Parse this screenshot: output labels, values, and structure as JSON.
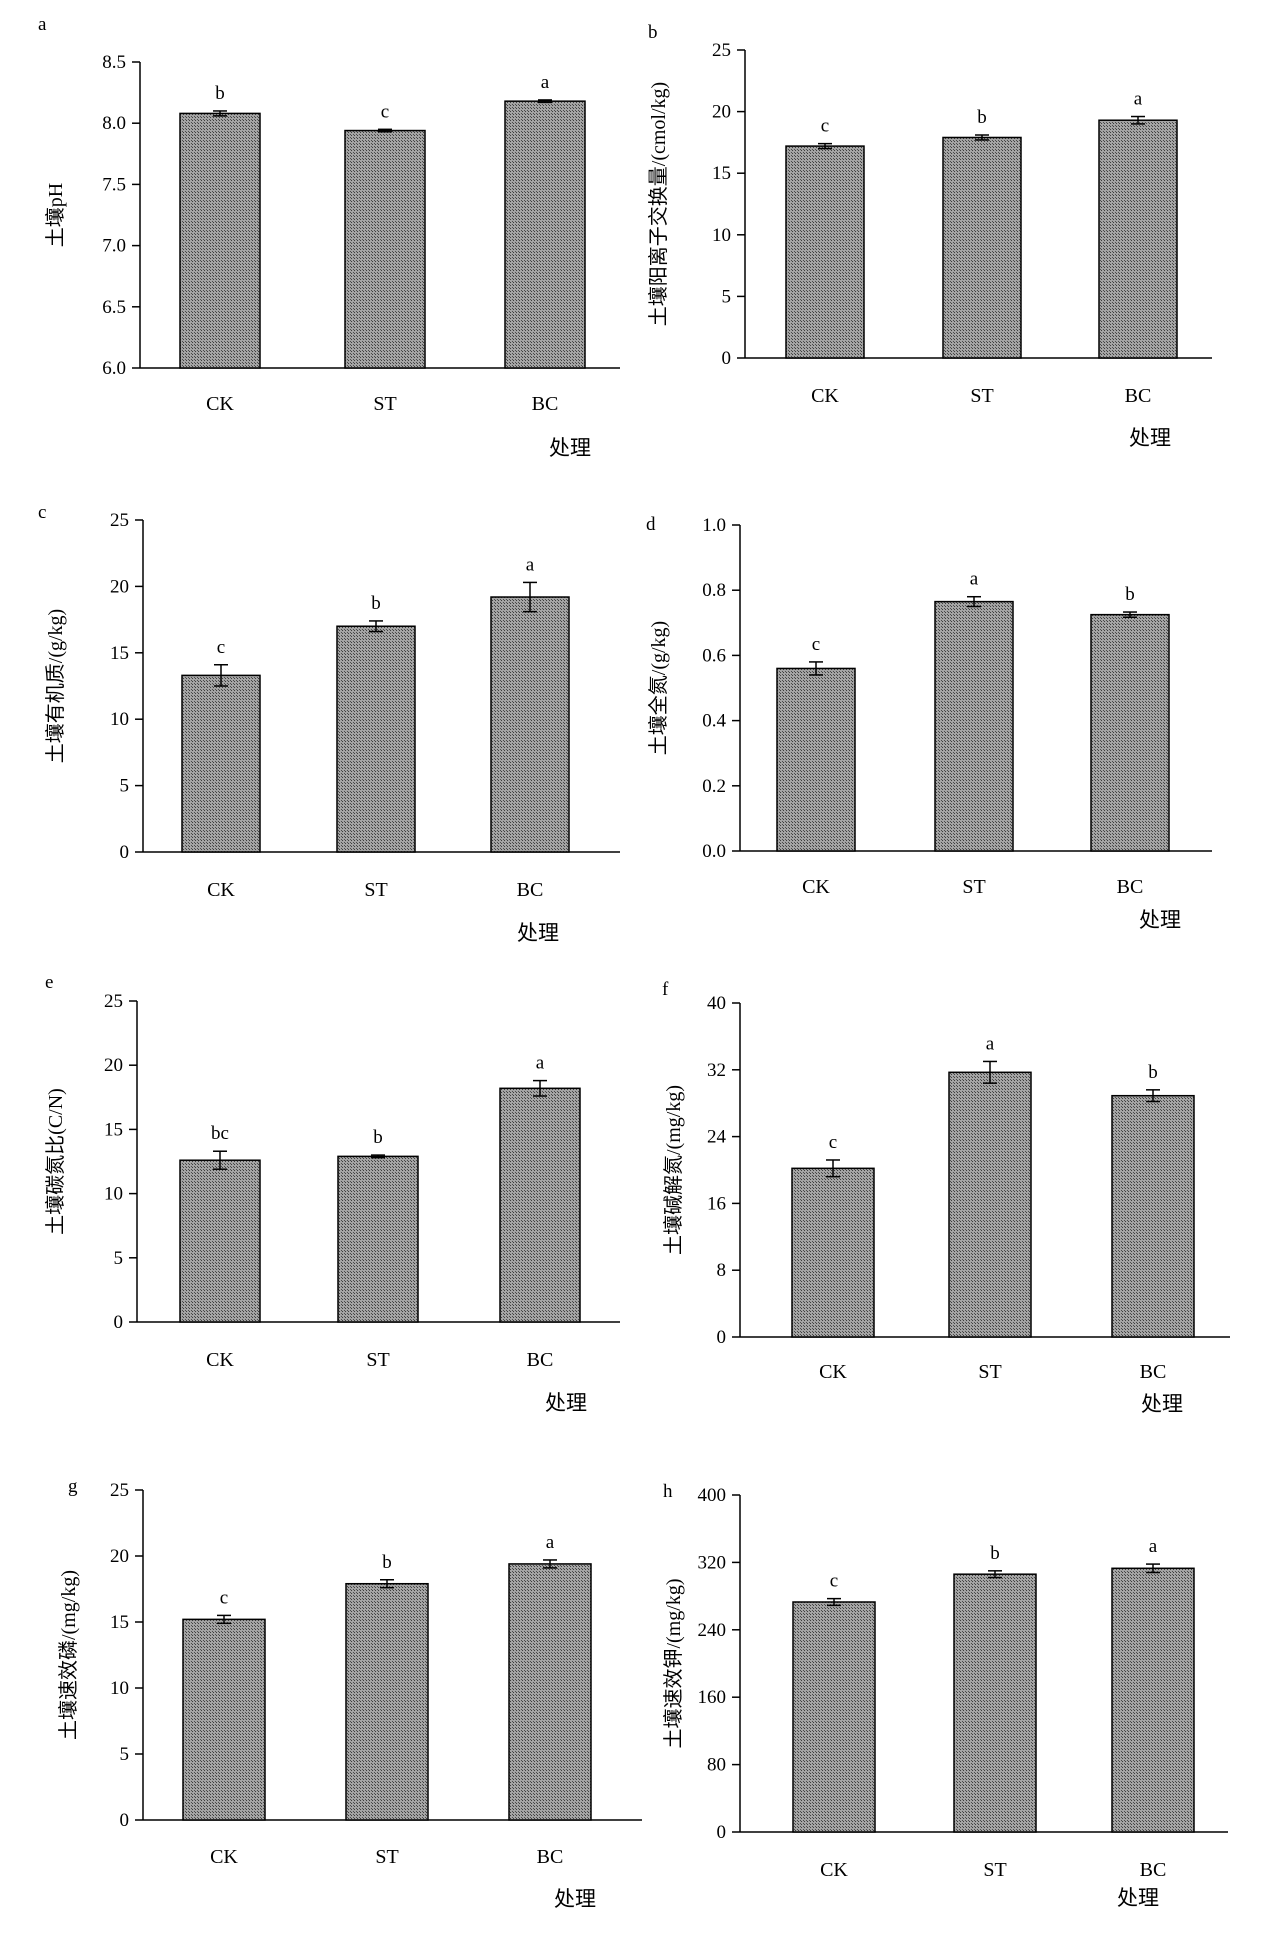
{
  "chart_data": [
    {
      "panel": "a",
      "type": "bar",
      "categories": [
        "CK",
        "ST",
        "BC"
      ],
      "values": [
        8.08,
        7.94,
        8.18
      ],
      "errors": [
        0.02,
        0.01,
        0.01
      ],
      "labels": [
        "b",
        "c",
        "a"
      ],
      "ylabel": "土壤pH",
      "xlabel": "处理",
      "ylim": [
        6.0,
        8.5
      ],
      "yticks": [
        "6.0",
        "6.5",
        "7.0",
        "7.5",
        "8.0",
        "8.5"
      ]
    },
    {
      "panel": "b",
      "type": "bar",
      "categories": [
        "CK",
        "ST",
        "BC"
      ],
      "values": [
        17.2,
        17.9,
        19.3
      ],
      "errors": [
        0.2,
        0.2,
        0.3
      ],
      "labels": [
        "c",
        "b",
        "a"
      ],
      "ylabel": "土壤阳离子交换量/(cmol/kg)",
      "xlabel": "处理",
      "ylim": [
        0,
        25
      ],
      "yticks": [
        "0",
        "5",
        "10",
        "15",
        "20",
        "25"
      ]
    },
    {
      "panel": "c",
      "type": "bar",
      "categories": [
        "CK",
        "ST",
        "BC"
      ],
      "values": [
        13.3,
        17.0,
        19.2
      ],
      "errors": [
        0.8,
        0.4,
        1.1
      ],
      "labels": [
        "c",
        "b",
        "a"
      ],
      "ylabel": "土壤有机质/(g/kg)",
      "xlabel": "处理",
      "ylim": [
        0,
        25
      ],
      "yticks": [
        "0",
        "5",
        "10",
        "15",
        "20",
        "25"
      ]
    },
    {
      "panel": "d",
      "type": "bar",
      "categories": [
        "CK",
        "ST",
        "BC"
      ],
      "values": [
        0.56,
        0.765,
        0.725
      ],
      "errors": [
        0.02,
        0.015,
        0.008
      ],
      "labels": [
        "c",
        "a",
        "b"
      ],
      "ylabel": "土壤全氮/(g/kg)",
      "xlabel": "处理",
      "ylim": [
        0,
        1.0
      ],
      "yticks": [
        "0.0",
        "0.2",
        "0.4",
        "0.6",
        "0.8",
        "1.0"
      ]
    },
    {
      "panel": "e",
      "type": "bar",
      "categories": [
        "CK",
        "ST",
        "BC"
      ],
      "values": [
        12.6,
        12.9,
        18.2
      ],
      "errors": [
        0.7,
        0.1,
        0.6
      ],
      "labels": [
        "bc",
        "b",
        "a"
      ],
      "ylabel": "土壤碳氮比(C/N)",
      "xlabel": "处理",
      "ylim": [
        0,
        25
      ],
      "yticks": [
        "0",
        "5",
        "10",
        "15",
        "20",
        "25"
      ]
    },
    {
      "panel": "f",
      "type": "bar",
      "categories": [
        "CK",
        "ST",
        "BC"
      ],
      "values": [
        20.2,
        31.7,
        28.9
      ],
      "errors": [
        1.0,
        1.3,
        0.7
      ],
      "labels": [
        "c",
        "a",
        "b"
      ],
      "ylabel": "土壤碱解氮/(mg/kg)",
      "xlabel": "处理",
      "ylim": [
        0,
        40
      ],
      "yticks": [
        "0",
        "8",
        "16",
        "24",
        "32",
        "40"
      ]
    },
    {
      "panel": "g",
      "type": "bar",
      "categories": [
        "CK",
        "ST",
        "BC"
      ],
      "values": [
        15.2,
        17.9,
        19.4
      ],
      "errors": [
        0.3,
        0.3,
        0.3
      ],
      "labels": [
        "c",
        "b",
        "a"
      ],
      "ylabel": "土壤速效磷/(mg/kg)",
      "xlabel": "处理",
      "ylim": [
        0,
        25
      ],
      "yticks": [
        "0",
        "5",
        "10",
        "15",
        "20",
        "25"
      ]
    },
    {
      "panel": "h",
      "type": "bar",
      "categories": [
        "CK",
        "ST",
        "BC"
      ],
      "values": [
        273,
        306,
        313
      ],
      "errors": [
        4,
        4,
        5
      ],
      "labels": [
        "c",
        "b",
        "a"
      ],
      "ylabel": "土壤速效钾/(mg/kg)",
      "xlabel": "处理",
      "ylim": [
        0,
        400
      ],
      "yticks": [
        "0",
        "80",
        "160",
        "240",
        "320",
        "400"
      ]
    }
  ]
}
